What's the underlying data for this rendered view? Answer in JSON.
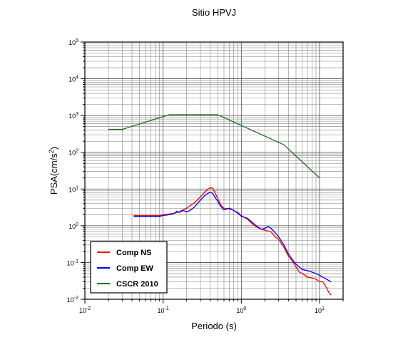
{
  "chart_data": {
    "type": "line",
    "title": "Sitio HPVJ",
    "xlabel": "Periodo (s)",
    "ylabel": "PSA(cm/s2)",
    "x_scale": "log",
    "y_scale": "log",
    "xlim": [
      0.01,
      20
    ],
    "ylim": [
      0.01,
      100000
    ],
    "grid": true,
    "legend_position": "bottom-left",
    "x_tick_labels": [
      {
        "base": "10",
        "exp": "-2",
        "value": 0.01
      },
      {
        "base": "10",
        "exp": "-1",
        "value": 0.1
      },
      {
        "base": "10",
        "exp": "0",
        "value": 1
      },
      {
        "base": "10",
        "exp": "1",
        "value": 10
      }
    ],
    "y_tick_labels": [
      {
        "base": "10",
        "exp": "-2",
        "value": 0.01
      },
      {
        "base": "10",
        "exp": "-1",
        "value": 0.1
      },
      {
        "base": "10",
        "exp": "0",
        "value": 1
      },
      {
        "base": "10",
        "exp": "1",
        "value": 10
      },
      {
        "base": "10",
        "exp": "2",
        "value": 100
      },
      {
        "base": "10",
        "exp": "3",
        "value": 1000
      },
      {
        "base": "10",
        "exp": "4",
        "value": 10000
      },
      {
        "base": "10",
        "exp": "5",
        "value": 100000
      }
    ],
    "series": [
      {
        "name": "Comp NS",
        "color": "#ff0000",
        "x": [
          0.042,
          0.05,
          0.06,
          0.07,
          0.08,
          0.09,
          0.1,
          0.12,
          0.14,
          0.16,
          0.18,
          0.2,
          0.22,
          0.25,
          0.28,
          0.31,
          0.34,
          0.37,
          0.4,
          0.43,
          0.46,
          0.5,
          0.55,
          0.6,
          0.7,
          0.8,
          0.9,
          1.0,
          1.2,
          1.4,
          1.6,
          1.8,
          2.0,
          2.2,
          2.4,
          2.7,
          3.0,
          3.5,
          4.0,
          4.5,
          5.0,
          5.5,
          6.0,
          6.5,
          7.0,
          8.0,
          9.0,
          10.0,
          11.0,
          12.0,
          13.0,
          14.0
        ],
        "y": [
          1.9,
          1.9,
          1.9,
          1.9,
          1.9,
          1.9,
          2.0,
          2.1,
          2.2,
          2.4,
          2.7,
          3.0,
          3.5,
          4.2,
          5.3,
          6.6,
          8.2,
          9.8,
          10.8,
          10.6,
          7.9,
          5.5,
          3.6,
          3.0,
          2.9,
          2.6,
          2.3,
          1.9,
          1.5,
          1.1,
          0.9,
          0.8,
          0.75,
          0.72,
          0.68,
          0.5,
          0.42,
          0.26,
          0.15,
          0.11,
          0.075,
          0.055,
          0.05,
          0.045,
          0.04,
          0.038,
          0.035,
          0.03,
          0.03,
          0.022,
          0.016,
          0.013
        ]
      },
      {
        "name": "Comp EW",
        "color": "#0000ff",
        "x": [
          0.042,
          0.05,
          0.06,
          0.07,
          0.08,
          0.09,
          0.1,
          0.12,
          0.14,
          0.15,
          0.16,
          0.18,
          0.2,
          0.22,
          0.25,
          0.28,
          0.31,
          0.34,
          0.37,
          0.4,
          0.43,
          0.46,
          0.5,
          0.55,
          0.6,
          0.7,
          0.8,
          0.9,
          1.0,
          1.2,
          1.4,
          1.6,
          1.8,
          2.0,
          2.2,
          2.4,
          2.7,
          3.0,
          3.5,
          4.0,
          4.5,
          5.0,
          5.5,
          6.0,
          7.0,
          8.0,
          9.0,
          10.0,
          11.0,
          12.0,
          14.0
        ],
        "y": [
          1.8,
          1.8,
          1.8,
          1.8,
          1.8,
          1.8,
          1.9,
          2.0,
          2.2,
          2.5,
          2.3,
          2.6,
          2.4,
          2.6,
          3.2,
          4.2,
          5.4,
          6.6,
          7.5,
          8.2,
          7.6,
          6.0,
          4.6,
          3.3,
          2.7,
          3.0,
          2.6,
          2.2,
          1.8,
          1.6,
          1.2,
          0.95,
          0.8,
          0.85,
          0.95,
          0.85,
          0.65,
          0.5,
          0.3,
          0.17,
          0.12,
          0.09,
          0.075,
          0.065,
          0.06,
          0.055,
          0.05,
          0.045,
          0.04,
          0.036,
          0.03
        ]
      },
      {
        "name": "CSCR 2010",
        "color": "#1f6b1f",
        "x": [
          0.02,
          0.03,
          0.12,
          0.5,
          3.5,
          10.0
        ],
        "y": [
          420,
          420,
          1050,
          1050,
          160,
          20
        ]
      }
    ]
  }
}
